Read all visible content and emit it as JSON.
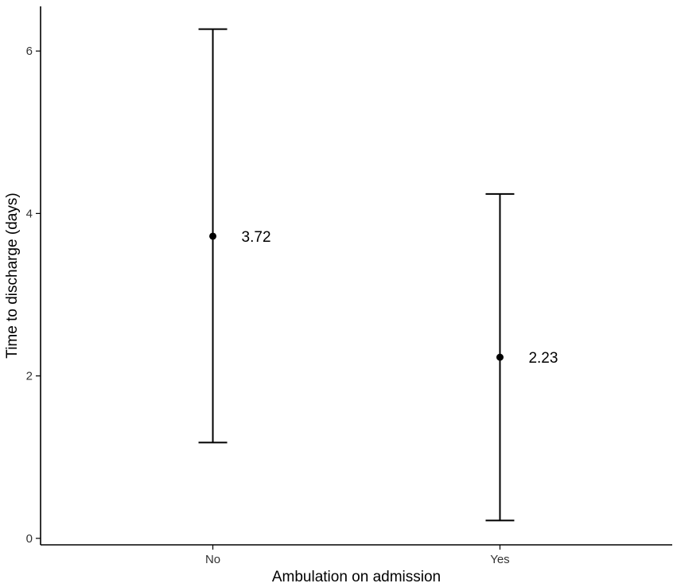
{
  "chart_data": {
    "type": "scatter",
    "title": "",
    "xlabel": "Ambulation on admission",
    "ylabel": "Time to discharge (days)",
    "categories": [
      "No",
      "Yes"
    ],
    "values": [
      3.72,
      2.23
    ],
    "lower": [
      1.18,
      0.22
    ],
    "upper": [
      6.27,
      4.24
    ],
    "data_labels": [
      "3.72",
      "2.23"
    ],
    "yticks": [
      0,
      2,
      4,
      6
    ],
    "ylim": [
      -0.08,
      6.55
    ],
    "grid": false,
    "legend": "none"
  }
}
